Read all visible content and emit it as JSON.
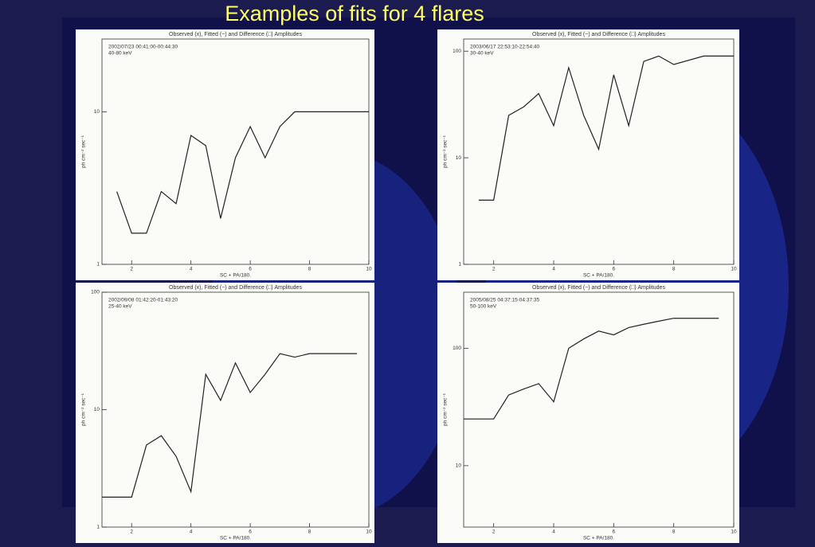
{
  "title": "Examples of fits for 4 flares",
  "chart_data": [
    {
      "type": "line",
      "title": "Observed (x), Fitted (−) and Difference (□) Amplitudes",
      "subtitle": [
        "2002/07/23 00:41:00-00:44:30",
        "40-80 keV"
      ],
      "x_label": "SC + PA/180.",
      "y_label": "ph cm⁻² sec⁻¹",
      "log_y": true,
      "xlim": [
        1,
        10
      ],
      "xticks": [
        2,
        4,
        6,
        8,
        10
      ],
      "ylim": [
        1,
        30
      ],
      "yticks": [
        1,
        10
      ],
      "x": [
        1.5,
        2,
        2.5,
        3,
        3.5,
        4,
        4.5,
        5,
        5.5,
        6,
        6.5,
        7,
        7.5,
        8,
        9,
        10
      ],
      "series": [
        {
          "color": "#222222",
          "values": [
            3,
            1.6,
            1.6,
            3,
            2.5,
            7,
            6,
            2,
            5,
            8,
            5,
            8,
            10,
            10,
            10,
            10
          ]
        }
      ]
    },
    {
      "type": "line",
      "title": "Observed (x), Fitted (−) and Difference (□) Amplitudes",
      "subtitle": [
        "2003/06/17 22:53:10-22:54:40",
        "30-40 keV"
      ],
      "x_label": "SC + PA/180.",
      "y_label": "ph cm⁻² sec⁻¹",
      "log_y": true,
      "xlim": [
        1,
        10
      ],
      "xticks": [
        2,
        4,
        6,
        8,
        10
      ],
      "ylim": [
        1,
        130
      ],
      "yticks": [
        1,
        10,
        100
      ],
      "x": [
        1.5,
        2,
        2.5,
        3,
        3.5,
        4,
        4.5,
        5,
        5.5,
        6,
        6.5,
        7,
        7.5,
        8,
        9,
        10
      ],
      "series": [
        {
          "color": "#222222",
          "values": [
            4,
            4,
            25,
            30,
            40,
            20,
            70,
            25,
            12,
            60,
            20,
            80,
            90,
            75,
            90,
            90
          ]
        }
      ]
    },
    {
      "type": "line",
      "title": "Observed (x), Fitted (−) and Difference (□) Amplitudes",
      "subtitle": [
        "2002/09/08 01:42:20-01:43:20",
        "25-40 keV"
      ],
      "x_label": "SC + PA/180.",
      "y_label": "ph cm⁻² sec⁻¹",
      "log_y": true,
      "xlim": [
        1,
        10
      ],
      "xticks": [
        2,
        4,
        6,
        8,
        10
      ],
      "ylim": [
        1,
        100
      ],
      "yticks": [
        1,
        10,
        100
      ],
      "x": [
        1,
        2,
        2.5,
        3,
        3.5,
        4,
        4.5,
        5,
        5.5,
        6,
        6.5,
        7,
        7.5,
        8,
        9,
        9.6
      ],
      "series": [
        {
          "color": "#222222",
          "values": [
            1.8,
            1.8,
            5,
            6,
            4,
            2,
            20,
            12,
            25,
            14,
            20,
            30,
            28,
            30,
            30,
            30
          ]
        }
      ]
    },
    {
      "type": "line",
      "title": "Observed (x), Fitted (−) and Difference (□) Amplitudes",
      "subtitle": [
        "2005/08/25 04:37:15-04:37:35",
        "50-100 keV"
      ],
      "x_label": "SC + PA/180.",
      "y_label": "ph cm⁻² sec⁻¹",
      "log_y": true,
      "xlim": [
        1,
        10
      ],
      "xticks": [
        2,
        4,
        6,
        8,
        10
      ],
      "ylim": [
        3,
        300
      ],
      "yticks": [
        10,
        100
      ],
      "x": [
        1,
        2,
        2.5,
        3,
        3.5,
        4,
        4.5,
        5,
        5.5,
        6,
        6.5,
        7,
        7.5,
        8,
        9,
        9.5
      ],
      "series": [
        {
          "color": "#222222",
          "values": [
            25,
            25,
            40,
            45,
            50,
            35,
            100,
            120,
            140,
            130,
            150,
            160,
            170,
            180,
            180,
            180
          ]
        }
      ]
    }
  ]
}
